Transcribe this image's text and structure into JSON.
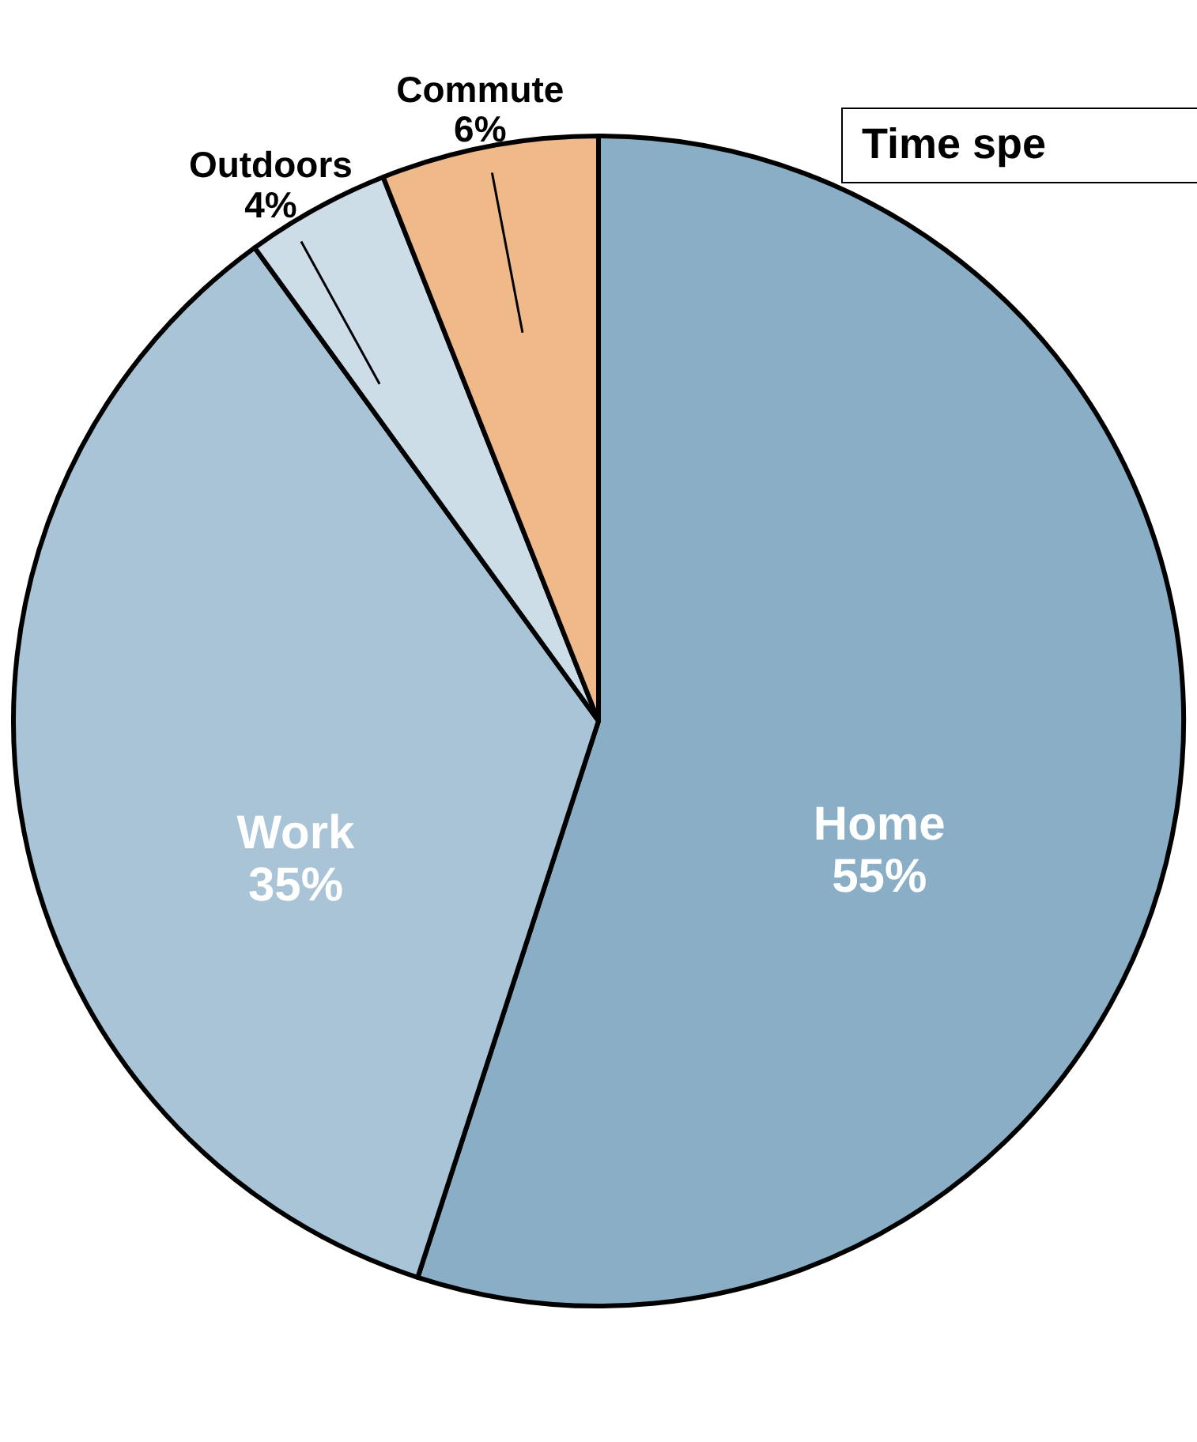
{
  "chart_data": {
    "type": "pie",
    "title": "Time spe",
    "categories": [
      "Home",
      "Work",
      "Outdoors",
      "Commute"
    ],
    "values": [
      55,
      35,
      4,
      6
    ],
    "value_labels": [
      "55%",
      "35%",
      "4%",
      "6%"
    ],
    "colors": [
      "#8aaec6",
      "#a9c4d6",
      "#cddde8",
      "#f0b98a"
    ]
  }
}
